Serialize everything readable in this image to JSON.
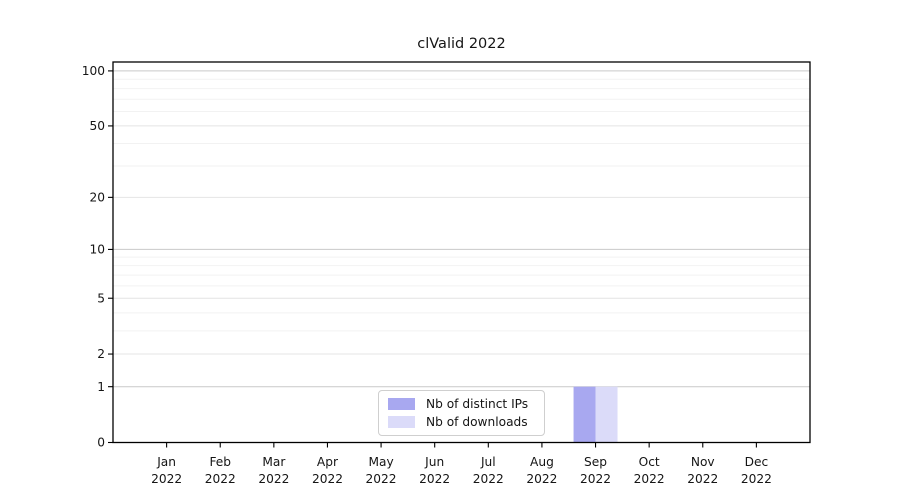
{
  "chart_data": {
    "type": "bar",
    "title": "clValid 2022",
    "categories": [
      "Jan 2022",
      "Feb 2022",
      "Mar 2022",
      "Apr 2022",
      "May 2022",
      "Jun 2022",
      "Jul 2022",
      "Aug 2022",
      "Sep 2022",
      "Oct 2022",
      "Nov 2022",
      "Dec 2022"
    ],
    "series": [
      {
        "name": "Nb of distinct IPs",
        "color": "#a8a8f0",
        "values": [
          0,
          0,
          0,
          0,
          0,
          0,
          0,
          0,
          1,
          0,
          0,
          0
        ]
      },
      {
        "name": "Nb of downloads",
        "color": "#dbdbf9",
        "values": [
          0,
          0,
          0,
          0,
          0,
          0,
          0,
          0,
          1,
          0,
          0,
          0
        ]
      }
    ],
    "xlabel": "",
    "ylabel": "",
    "yscale": "log1p",
    "ylim": [
      0,
      111
    ],
    "yticks": [
      0,
      1,
      2,
      5,
      10,
      20,
      50,
      100
    ],
    "emphasized_gridlines": [
      1,
      10,
      100
    ],
    "minor_gridlines": [
      3,
      4,
      6,
      7,
      8,
      9,
      30,
      40,
      60,
      70,
      80,
      90
    ],
    "grid": true,
    "legend_position": "lower center-left",
    "colors": {
      "grid_strong": "#c9c9c9",
      "grid_mid": "#e4e4e4",
      "grid_minor": "#f2f2f2",
      "spine": "#000000",
      "text": "#151515"
    }
  }
}
